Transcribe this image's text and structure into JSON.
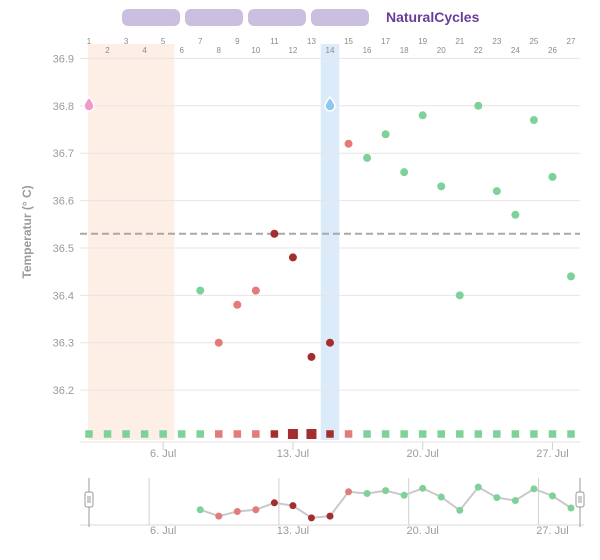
{
  "header": {
    "brand": "NaturalCycles",
    "tab_count": 4
  },
  "colors": {
    "period": "#fdeee6",
    "ovulation": "#dcebfa",
    "green": "#7fd19a",
    "red_light": "#e37b7b",
    "red_dark": "#a32e2e",
    "coverline": "#a9a9a9",
    "brand": "#6a3d9a",
    "period_drop": "#f29ac7",
    "ovulation_drop": "#8dc8f2"
  },
  "icons": {
    "period_marker": "period-drop-icon",
    "ovulation_marker": "ovulation-drop-icon"
  },
  "chart_data": {
    "type": "scatter",
    "title": "",
    "ylabel": "Temperatur (° C)",
    "xlabel": "",
    "cycle_days": [
      1,
      2,
      3,
      4,
      5,
      6,
      7,
      8,
      9,
      10,
      11,
      12,
      13,
      14,
      15,
      16,
      17,
      18,
      19,
      20,
      21,
      22,
      23,
      24,
      25,
      26,
      27
    ],
    "date_ticks": [
      "6. Jul",
      "13. Jul",
      "20. Jul",
      "27. Jul"
    ],
    "date_tick_days": [
      5,
      12,
      19,
      26
    ],
    "yticks": [
      "36.9",
      "36.8",
      "36.7",
      "36.6",
      "36.5",
      "36.4",
      "36.3",
      "36.2"
    ],
    "ylim": [
      36.12,
      36.96
    ],
    "xlim": [
      1,
      27
    ],
    "coverline": 36.53,
    "grid": "horizontal",
    "period_days": [
      1,
      5
    ],
    "ovulation_day": 14,
    "markers": {
      "period_day": 1,
      "ovulation_day": 14
    },
    "points": [
      {
        "day": 7,
        "temp": 36.41,
        "status": "green"
      },
      {
        "day": 8,
        "temp": 36.3,
        "status": "red_light"
      },
      {
        "day": 9,
        "temp": 36.38,
        "status": "red_light"
      },
      {
        "day": 10,
        "temp": 36.41,
        "status": "red_light"
      },
      {
        "day": 11,
        "temp": 36.53,
        "status": "red_dark"
      },
      {
        "day": 12,
        "temp": 36.48,
        "status": "red_dark"
      },
      {
        "day": 13,
        "temp": 36.27,
        "status": "red_dark"
      },
      {
        "day": 14,
        "temp": 36.3,
        "status": "red_dark"
      },
      {
        "day": 15,
        "temp": 36.72,
        "status": "red_light"
      },
      {
        "day": 16,
        "temp": 36.69,
        "status": "green"
      },
      {
        "day": 17,
        "temp": 36.74,
        "status": "green"
      },
      {
        "day": 18,
        "temp": 36.66,
        "status": "green"
      },
      {
        "day": 19,
        "temp": 36.78,
        "status": "green"
      },
      {
        "day": 20,
        "temp": 36.63,
        "status": "green"
      },
      {
        "day": 21,
        "temp": 36.4,
        "status": "green"
      },
      {
        "day": 22,
        "temp": 36.8,
        "status": "green"
      },
      {
        "day": 23,
        "temp": 36.62,
        "status": "green"
      },
      {
        "day": 24,
        "temp": 36.57,
        "status": "green"
      },
      {
        "day": 25,
        "temp": 36.77,
        "status": "green"
      },
      {
        "day": 26,
        "temp": 36.65,
        "status": "green"
      },
      {
        "day": 27,
        "temp": 36.44,
        "status": "green"
      }
    ],
    "day_status": [
      "green",
      "green",
      "green",
      "green",
      "green",
      "green",
      "green",
      "red_light",
      "red_light",
      "red_light",
      "red_dark",
      "red_dark",
      "red_dark",
      "red_dark",
      "red_light",
      "green",
      "green",
      "green",
      "green",
      "green",
      "green",
      "green",
      "green",
      "green",
      "green",
      "green",
      "green"
    ],
    "navigator": {
      "date_ticks": [
        "6. Jul",
        "13. Jul",
        "20. Jul",
        "27. Jul"
      ],
      "date_tick_days": [
        5,
        12,
        19,
        26
      ]
    }
  }
}
